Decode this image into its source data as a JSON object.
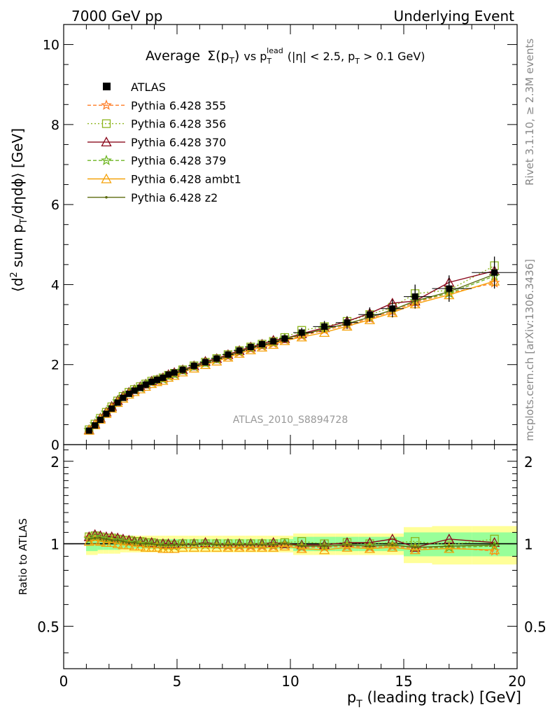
{
  "header": {
    "left": "7000 GeV pp",
    "right": "Underlying Event"
  },
  "side_labels": {
    "rivet": "Rivet 3.1.10, ≥ 2.3M events",
    "mcplots": "mcplots.cern.ch [arXiv:1306.3436]"
  },
  "chart_data": {
    "type": "line",
    "title": {
      "lead": "Average",
      "sigma": "Σ(p",
      "sigma_sub": "T",
      "sigma_close": ")",
      "vs": " vs p",
      "vs_sub": "T",
      "vs_sup": "lead",
      "cuts_a": " (|η| < 2.5, p",
      "cuts_sub": "T",
      "cuts_b": " > 0.1 GeV)"
    },
    "watermark": "ATLAS_2010_S8894728",
    "xlabel": {
      "p": "p",
      "sub": "T",
      "rest": " (leading track) [GeV]"
    },
    "ylabel": {
      "a": "⟨d",
      "sup": "2",
      "b": " sum p",
      "sub": "T",
      "c": "/dηdϕ⟩ [GeV]"
    },
    "ratio_ylabel": "Ratio to ATLAS",
    "xlim": [
      0,
      20
    ],
    "ylim": [
      0,
      10.5
    ],
    "ratio_ylim": [
      0.35,
      2.3
    ],
    "ratio_log": true,
    "x_ticks": [
      "0",
      "5",
      "10",
      "15",
      "20"
    ],
    "y_ticks": [
      "0",
      "2",
      "4",
      "6",
      "8",
      "10"
    ],
    "ratio_ticks": [
      "0.5",
      "1",
      "2"
    ],
    "legend": {
      "position": "top-left",
      "data_label": "ATLAS"
    },
    "data": {
      "name": "ATLAS",
      "x": [
        1.12,
        1.38,
        1.62,
        1.88,
        2.12,
        2.38,
        2.62,
        2.88,
        3.12,
        3.38,
        3.62,
        3.88,
        4.12,
        4.38,
        4.62,
        4.88,
        5.25,
        5.75,
        6.25,
        6.75,
        7.25,
        7.75,
        8.25,
        8.75,
        9.25,
        9.75,
        10.5,
        11.5,
        12.5,
        13.5,
        14.5,
        15.5,
        17.0,
        19.0
      ],
      "y": [
        0.35,
        0.48,
        0.62,
        0.77,
        0.9,
        1.05,
        1.17,
        1.27,
        1.35,
        1.42,
        1.5,
        1.57,
        1.62,
        1.67,
        1.75,
        1.8,
        1.87,
        1.97,
        2.06,
        2.15,
        2.25,
        2.35,
        2.44,
        2.51,
        2.58,
        2.65,
        2.8,
        2.95,
        3.05,
        3.25,
        3.4,
        3.7,
        3.9,
        4.3
      ],
      "stat_err": [
        0.03,
        0.03,
        0.03,
        0.03,
        0.03,
        0.03,
        0.03,
        0.03,
        0.03,
        0.03,
        0.03,
        0.03,
        0.03,
        0.03,
        0.03,
        0.04,
        0.04,
        0.05,
        0.05,
        0.06,
        0.06,
        0.07,
        0.07,
        0.08,
        0.08,
        0.09,
        0.12,
        0.14,
        0.16,
        0.18,
        0.22,
        0.3,
        0.33,
        0.4
      ],
      "green_band": [
        0.06,
        0.06,
        0.05,
        0.05,
        0.05,
        0.05,
        0.04,
        0.04,
        0.04,
        0.04,
        0.04,
        0.04,
        0.04,
        0.04,
        0.04,
        0.04,
        0.04,
        0.04,
        0.04,
        0.04,
        0.04,
        0.04,
        0.04,
        0.04,
        0.04,
        0.04,
        0.06,
        0.06,
        0.06,
        0.06,
        0.06,
        0.1,
        0.1,
        0.1
      ],
      "yellow_band": [
        0.09,
        0.09,
        0.08,
        0.08,
        0.08,
        0.08,
        0.07,
        0.07,
        0.07,
        0.07,
        0.07,
        0.07,
        0.07,
        0.07,
        0.07,
        0.07,
        0.07,
        0.07,
        0.07,
        0.07,
        0.07,
        0.07,
        0.07,
        0.07,
        0.07,
        0.07,
        0.09,
        0.09,
        0.09,
        0.09,
        0.09,
        0.15,
        0.16,
        0.16
      ]
    },
    "series": [
      {
        "name": "Pythia 6.428 355",
        "color": "#ff7f2a",
        "dash": "5,3",
        "marker": "star",
        "ratio": [
          1.05,
          1.06,
          1.05,
          1.04,
          1.04,
          1.03,
          1.02,
          1.02,
          1.01,
          1.0,
          1.0,
          0.99,
          0.99,
          0.98,
          0.98,
          0.98,
          0.99,
          0.99,
          0.99,
          0.99,
          0.98,
          0.98,
          0.98,
          0.98,
          0.98,
          0.99,
          0.97,
          0.97,
          0.98,
          0.97,
          0.98,
          0.96,
          0.97,
          0.94
        ]
      },
      {
        "name": "Pythia 6.428 356",
        "color": "#8db51c",
        "dash": "2,3",
        "marker": "square",
        "ratio": [
          1.06,
          1.07,
          1.06,
          1.05,
          1.05,
          1.04,
          1.03,
          1.03,
          1.02,
          1.02,
          1.01,
          1.01,
          1.0,
          1.0,
          0.99,
          0.99,
          1.0,
          1.0,
          1.0,
          1.0,
          1.0,
          1.0,
          1.0,
          1.0,
          1.0,
          1.01,
          1.02,
          1.0,
          1.01,
          1.0,
          1.01,
          1.02,
          0.99,
          1.04
        ]
      },
      {
        "name": "Pythia 6.428 370",
        "color": "#8b0a1d",
        "dash": "",
        "marker": "triangle",
        "ratio": [
          1.06,
          1.08,
          1.07,
          1.06,
          1.06,
          1.05,
          1.04,
          1.03,
          1.02,
          1.02,
          1.01,
          1.01,
          1.0,
          1.0,
          1.0,
          1.0,
          1.0,
          1.0,
          1.01,
          1.0,
          1.0,
          1.0,
          1.0,
          1.0,
          1.01,
          1.0,
          0.99,
          0.99,
          1.01,
          1.01,
          1.04,
          0.97,
          1.04,
          1.01
        ]
      },
      {
        "name": "Pythia 6.428 379",
        "color": "#6db521",
        "dash": "5,3",
        "marker": "star",
        "ratio": [
          1.04,
          1.06,
          1.05,
          1.04,
          1.03,
          1.03,
          1.02,
          1.01,
          1.01,
          1.0,
          1.0,
          0.99,
          0.99,
          0.98,
          0.98,
          0.98,
          0.99,
          0.99,
          0.99,
          0.99,
          0.99,
          0.99,
          0.99,
          0.99,
          0.99,
          1.0,
          0.98,
          0.98,
          0.99,
          0.98,
          0.99,
          0.97,
          0.97,
          0.98
        ]
      },
      {
        "name": "Pythia 6.428 ambt1",
        "color": "#f5a20a",
        "dash": "",
        "marker": "triangle",
        "ratio": [
          1.02,
          1.03,
          1.02,
          1.01,
          1.01,
          1.0,
          0.99,
          0.99,
          0.98,
          0.98,
          0.97,
          0.97,
          0.97,
          0.96,
          0.96,
          0.96,
          0.97,
          0.97,
          0.97,
          0.97,
          0.97,
          0.97,
          0.97,
          0.97,
          0.97,
          0.98,
          0.96,
          0.95,
          0.97,
          0.96,
          0.97,
          0.95,
          0.96,
          0.95
        ]
      },
      {
        "name": "Pythia 6.428 z2",
        "color": "#5b6b0e",
        "dash": "",
        "marker": "dot",
        "ratio": [
          1.04,
          1.05,
          1.05,
          1.04,
          1.03,
          1.03,
          1.02,
          1.01,
          1.01,
          1.0,
          1.0,
          1.0,
          0.99,
          0.99,
          0.99,
          0.99,
          0.99,
          0.99,
          1.0,
          0.99,
          0.99,
          0.99,
          0.99,
          0.99,
          0.99,
          1.0,
          0.98,
          0.98,
          0.99,
          0.98,
          0.99,
          0.97,
          0.98,
          0.99
        ]
      }
    ]
  }
}
